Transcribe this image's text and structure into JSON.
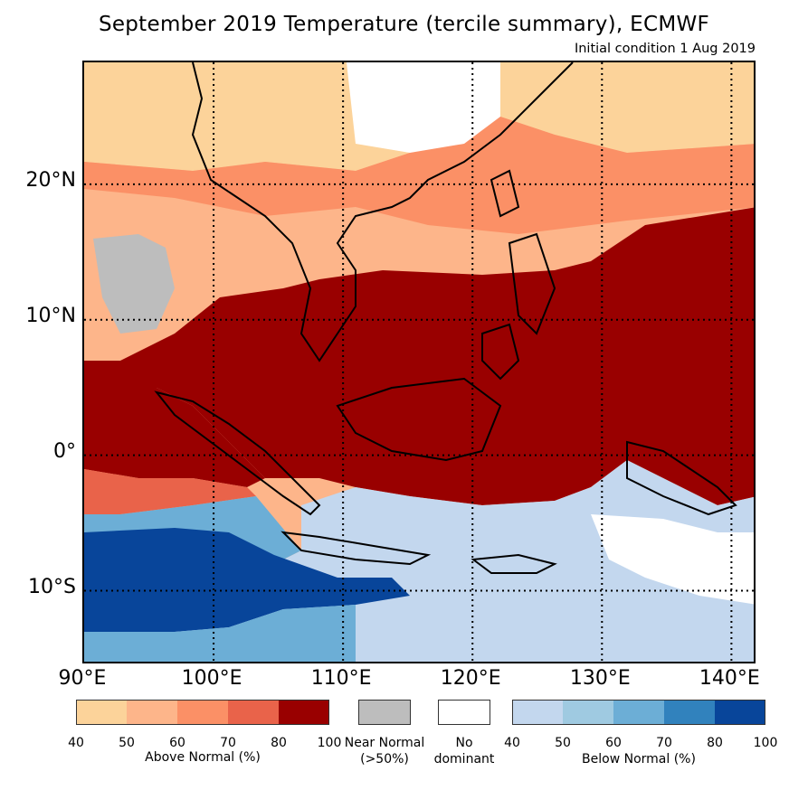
{
  "title": "September 2019 Temperature (tercile summary), ECMWF",
  "subtitle": "Initial condition 1 Aug 2019",
  "map": {
    "lon_range": [
      90,
      142
    ],
    "lat_range": [
      -15.5,
      29
    ],
    "lat_labels": [
      {
        "value": 20,
        "text": "20°N"
      },
      {
        "value": 10,
        "text": "10°N"
      },
      {
        "value": 0,
        "text": "0°"
      },
      {
        "value": -10,
        "text": "10°S"
      }
    ],
    "lon_labels": [
      {
        "value": 90,
        "text": "90°E"
      },
      {
        "value": 100,
        "text": "100°E"
      },
      {
        "value": 110,
        "text": "110°E"
      },
      {
        "value": 120,
        "text": "120°E"
      },
      {
        "value": 130,
        "text": "130°E"
      },
      {
        "value": 140,
        "text": "140°E"
      }
    ],
    "regions": [
      {
        "name": "north-above-light",
        "category": "above-50"
      },
      {
        "name": "north-above-mid",
        "category": "above-60"
      },
      {
        "name": "tropics-above-strong",
        "category": "above-90"
      },
      {
        "name": "indian-ocean-below-strong",
        "category": "below-90"
      },
      {
        "name": "java-sea-below-light",
        "category": "below-50"
      },
      {
        "name": "myanmar-near-normal",
        "category": "near-normal"
      },
      {
        "name": "south-china-no-dominant",
        "category": "no-dominant"
      }
    ]
  },
  "colors": {
    "above": [
      "#fcd39a",
      "#fdb58a",
      "#fb9066",
      "#e9634a",
      "#990000"
    ],
    "below": [
      "#c3d7ee",
      "#9fcae1",
      "#6caed6",
      "#3182bd",
      "#08459a"
    ],
    "near_normal": "#bdbdbd",
    "no_dominant": "#ffffff"
  },
  "legend": {
    "above": {
      "ticks": [
        "40",
        "50",
        "60",
        "70",
        "80",
        "100"
      ],
      "caption": "Above Normal (%)"
    },
    "near_normal": {
      "line1": "Near Normal",
      "line2": "(>50%)"
    },
    "no_dominant": {
      "line1": "No",
      "line2": "dominant"
    },
    "below": {
      "ticks": [
        "40",
        "50",
        "60",
        "70",
        "80",
        "100"
      ],
      "caption": "Below Normal (%)"
    }
  }
}
